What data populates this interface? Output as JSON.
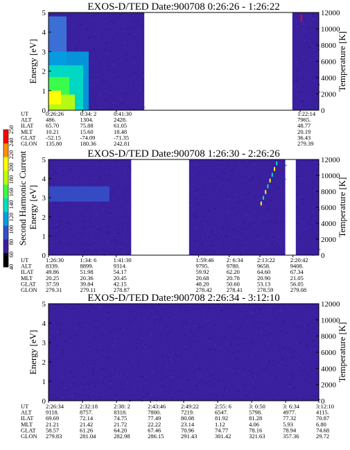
{
  "colors": {
    "background": "#3a1f9e",
    "gap": "#ffffff",
    "colorbar": [
      "#000000",
      "#3a1f9e",
      "#3450c8",
      "#00a0e0",
      "#00e0c0",
      "#40ff40",
      "#c0ff00",
      "#ffff00",
      "#ff9000",
      "#ff0000"
    ]
  },
  "colorbar": {
    "label": "Second Harmonic Current",
    "ticks": [
      "40",
      "60",
      "80",
      "100",
      "120",
      "140",
      "160",
      "180",
      "200",
      "220",
      "240",
      "250"
    ]
  },
  "chart_data": [
    {
      "type": "heatmap",
      "title": "EXOS-D/TED   Date:900708   0:26:26 - 1:26:22",
      "ylabel": "Energy [eV]",
      "y2label": "Temperature [K]",
      "ylim": [
        0,
        5
      ],
      "y2lim": [
        0,
        12000
      ],
      "yticks": [
        "0",
        "1",
        "2",
        "3",
        "4",
        "5"
      ],
      "y2ticks": [
        "0",
        "2000",
        "4000",
        "6000",
        "8000",
        "10000",
        "12000"
      ],
      "time_range": [
        "0:26:26",
        "1:26:22"
      ],
      "data_intervals": [
        [
          "0:26:26",
          "0:47:40"
        ],
        [
          "1:20:30",
          "1:26:22"
        ]
      ],
      "ephemeris_rows": [
        "UT",
        "ALT",
        "ILAT",
        "MLT",
        "GLAT",
        "GLON"
      ],
      "ephemeris": [
        {
          "t": "0:26:26",
          "ALT": "486.",
          "ILAT": "65.70",
          "MLT": "10.21",
          "GLAT": "-52.15",
          "GLON": "135.80"
        },
        {
          "t": "0:34: 2",
          "ALT": "1304.",
          "ILAT": "75.88",
          "MLT": "15.60",
          "GLAT": "-74.09",
          "GLON": "180.36"
        },
        {
          "t": "0:41:30",
          "ALT": "2428.",
          "ILAT": "61.05",
          "MLT": "18.48",
          "GLAT": "-71.35",
          "GLON": "242.81"
        },
        {
          "t": "1:22:14",
          "ALT": "7965.",
          "ILAT": "48.77",
          "MLT": "20.19",
          "GLAT": "36.43",
          "GLON": "279.39"
        }
      ]
    },
    {
      "type": "heatmap",
      "title": "EXOS-D/TED   Date:900708   1:26:30 - 2:26:26",
      "ylabel": "Energy [eV]",
      "y2label": "Temperature [K]",
      "ylim": [
        0,
        5
      ],
      "y2lim": [
        0,
        12000
      ],
      "yticks": [
        "0",
        "1",
        "2",
        "3",
        "4",
        "5"
      ],
      "y2ticks": [
        "0",
        "2000",
        "4000",
        "6000",
        "8000",
        "10000",
        "12000"
      ],
      "time_range": [
        "1:26:30",
        "2:26:26"
      ],
      "data_intervals": [
        [
          "1:26:30",
          "1:44:50"
        ],
        [
          "1:57:40",
          "2:19:00"
        ],
        [
          "2:21:20",
          "2:26:26"
        ]
      ],
      "ephemeris_rows": [
        "UT",
        "ALT",
        "ILAT",
        "MLT",
        "GLAT",
        "GLON"
      ],
      "ephemeris": [
        {
          "t": "1:26:30",
          "ALT": "8339.",
          "ILAT": "49.86",
          "MLT": "20.25",
          "GLAT": "37.59",
          "GLON": "279.31"
        },
        {
          "t": "1:34: 6",
          "ALT": "8899.",
          "ILAT": "51.98",
          "MLT": "20.36",
          "GLAT": "39.84",
          "GLON": "279.11"
        },
        {
          "t": "1:41:30",
          "ALT": "9314.",
          "ILAT": "54.17",
          "MLT": "20.45",
          "GLAT": "42.15",
          "GLON": "278.87"
        },
        {
          "t": "1:59:46",
          "ALT": "9795.",
          "ILAT": "59.92",
          "MLT": "20.68",
          "GLAT": "48.20",
          "GLON": "278.42"
        },
        {
          "t": "2: 6:34",
          "ALT": "9780.",
          "ILAT": "62.20",
          "MLT": "20.78",
          "GLAT": "50.60",
          "GLON": "278.41"
        },
        {
          "t": "2:13:22",
          "ALT": "9658.",
          "ILAT": "64.60",
          "MLT": "20.90",
          "GLAT": "53.13",
          "GLON": "278.59"
        },
        {
          "t": "2:20:42",
          "ALT": "9408.",
          "ILAT": "67.34",
          "MLT": "21.05",
          "GLAT": "56.05",
          "GLON": "279.08"
        }
      ]
    },
    {
      "type": "heatmap",
      "title": "EXOS-D/TED   Date:900708   2:26:34 - 3:12:10",
      "ylabel": "Energy [eV]",
      "y2label": "Temperature [K]",
      "ylim": [
        0,
        5
      ],
      "y2lim": [
        0,
        12000
      ],
      "yticks": [
        "0",
        "1",
        "2",
        "3",
        "4",
        "5"
      ],
      "y2ticks": [
        "0",
        "2000",
        "4000",
        "6000",
        "8000",
        "10000",
        "12000"
      ],
      "time_range": [
        "2:26:34",
        "3:12:10"
      ],
      "data_intervals": [
        [
          "2:26:34",
          "3:12:10"
        ]
      ],
      "ephemeris_rows": [
        "UT",
        "ALT",
        "ILAT",
        "MLT",
        "GLAT",
        "GLON"
      ],
      "ephemeris": [
        {
          "t": "2:26:34",
          "ALT": "9118.",
          "ILAT": "69.69",
          "MLT": "21.21",
          "GLAT": "58.57",
          "GLON": "279.83"
        },
        {
          "t": "2:32:18",
          "ALT": "8757.",
          "ILAT": "72.14",
          "MLT": "21.42",
          "GLAT": "61.26",
          "GLON": "281.04"
        },
        {
          "t": "2:38: 2",
          "ALT": "8318.",
          "ILAT": "74.75",
          "MLT": "21.72",
          "GLAT": "64.20",
          "GLON": "282.98"
        },
        {
          "t": "2:43:46",
          "ALT": "7800.",
          "ILAT": "77.49",
          "MLT": "22.22",
          "GLAT": "67.46",
          "GLON": "286.15"
        },
        {
          "t": "2:49:22",
          "ALT": "7219.",
          "ILAT": "80.08",
          "MLT": "23.14",
          "GLAT": "70.96",
          "GLON": "291.43"
        },
        {
          "t": "2:55: 6",
          "ALT": "6547.",
          "ILAT": "81.92",
          "MLT": "1.12",
          "GLAT": "74.77",
          "GLON": "301.42"
        },
        {
          "t": "3: 0:50",
          "ALT": "5798.",
          "ILAT": "81.28",
          "MLT": "4.06",
          "GLAT": "78.16",
          "GLON": "321.63"
        },
        {
          "t": "3: 6:34",
          "ALT": "4977.",
          "ILAT": "77.32",
          "MLT": "5.93",
          "GLAT": "78.94",
          "GLON": "357.36"
        },
        {
          "t": "3:12:10",
          "ALT": "4115.",
          "ILAT": "70.87",
          "MLT": "6.80",
          "GLAT": "74.68",
          "GLON": "29.72"
        }
      ]
    }
  ]
}
